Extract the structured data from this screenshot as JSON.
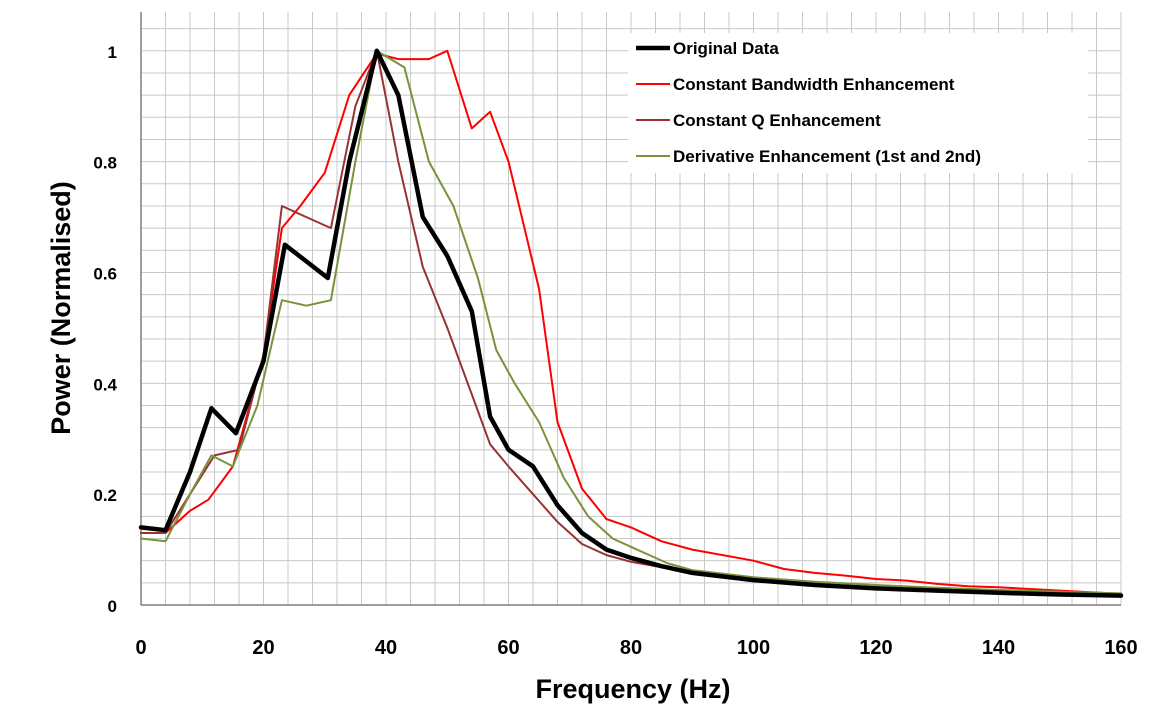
{
  "chart_data": {
    "type": "line",
    "title": "",
    "xlabel": "Frequency (Hz)",
    "ylabel": "Power (Normalised)",
    "xlim": [
      0,
      160
    ],
    "ylim": [
      0,
      1.07
    ],
    "xticks": [
      "0",
      "20",
      "40",
      "60",
      "80",
      "100",
      "120",
      "140",
      "160"
    ],
    "yticks": [
      "0",
      "0.2",
      "0.4",
      "0.6",
      "0.8",
      "1"
    ],
    "grid": true,
    "grid_minor_x": 4,
    "grid_minor_y": 0.04,
    "legend_position": "top-right",
    "series": [
      {
        "name": "Original Data",
        "color": "#000000",
        "x": [
          0,
          4,
          8,
          11.5,
          15.5,
          20,
          23.5,
          27,
          30.5,
          34,
          38.5,
          42,
          46,
          50,
          54,
          57,
          60,
          64,
          68,
          72,
          76,
          80,
          85,
          90,
          100,
          110,
          120,
          130,
          140,
          150,
          160
        ],
        "y": [
          0.14,
          0.135,
          0.24,
          0.355,
          0.31,
          0.44,
          0.65,
          0.62,
          0.59,
          0.8,
          1.0,
          0.92,
          0.7,
          0.63,
          0.53,
          0.34,
          0.28,
          0.25,
          0.18,
          0.13,
          0.1,
          0.085,
          0.07,
          0.058,
          0.045,
          0.036,
          0.03,
          0.026,
          0.022,
          0.019,
          0.017
        ]
      },
      {
        "name": "Constant Bandwidth Enhancement",
        "color": "#ff0000",
        "x": [
          0,
          4,
          8,
          11,
          15,
          20,
          23,
          26,
          30,
          34,
          38.5,
          42,
          47,
          50,
          54,
          57,
          60,
          65,
          68,
          72,
          76,
          80,
          85,
          90,
          100,
          105,
          110,
          115,
          120,
          125,
          130,
          135,
          140,
          150,
          160
        ],
        "y": [
          0.13,
          0.13,
          0.17,
          0.19,
          0.25,
          0.45,
          0.68,
          0.72,
          0.78,
          0.92,
          0.995,
          0.985,
          0.985,
          1.0,
          0.86,
          0.89,
          0.8,
          0.57,
          0.33,
          0.21,
          0.155,
          0.14,
          0.115,
          0.1,
          0.08,
          0.065,
          0.058,
          0.053,
          0.047,
          0.044,
          0.038,
          0.034,
          0.032,
          0.026,
          0.02
        ]
      },
      {
        "name": "Constant Q Enhancement",
        "color": "#993333",
        "x": [
          0,
          4,
          8,
          12,
          16,
          20,
          23,
          27,
          31,
          35,
          38.5,
          42,
          46,
          50,
          54,
          57,
          60,
          64,
          68,
          72,
          76,
          80,
          85,
          90,
          100,
          110,
          120,
          130,
          140,
          150,
          160
        ],
        "y": [
          0.13,
          0.13,
          0.2,
          0.27,
          0.28,
          0.45,
          0.72,
          0.7,
          0.68,
          0.9,
          1.0,
          0.8,
          0.61,
          0.5,
          0.38,
          0.29,
          0.25,
          0.2,
          0.15,
          0.11,
          0.09,
          0.078,
          0.068,
          0.058,
          0.046,
          0.038,
          0.032,
          0.027,
          0.023,
          0.02,
          0.018
        ]
      },
      {
        "name": "Derivative Enhancement (1st and 2nd)",
        "color": "#77933c",
        "x": [
          0,
          4,
          8,
          11.5,
          15,
          19,
          23,
          27,
          31,
          35,
          38.5,
          43,
          47,
          51,
          55,
          58,
          61,
          65,
          69,
          73,
          77,
          81,
          86,
          90,
          100,
          110,
          120,
          130,
          140,
          150,
          160
        ],
        "y": [
          0.12,
          0.115,
          0.2,
          0.27,
          0.25,
          0.36,
          0.55,
          0.54,
          0.55,
          0.8,
          1.0,
          0.97,
          0.8,
          0.72,
          0.59,
          0.46,
          0.4,
          0.33,
          0.23,
          0.16,
          0.12,
          0.1,
          0.075,
          0.063,
          0.05,
          0.042,
          0.036,
          0.031,
          0.027,
          0.024,
          0.021
        ]
      }
    ]
  }
}
